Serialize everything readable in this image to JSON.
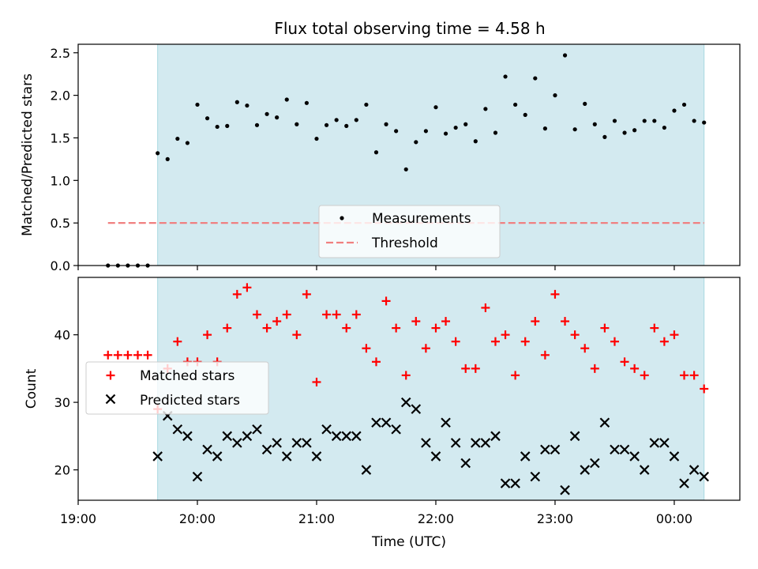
{
  "figure": {
    "title": "Flux total observing time = 4.58 h",
    "x_axis_label": "Time (UTC)"
  },
  "colors": {
    "shade": "#d3eaf0",
    "shade_edge": "#a8d8e0",
    "measurement": "#000000",
    "threshold": "#f08080",
    "matched": "#ff0000",
    "predicted": "#000000"
  },
  "chart_data": [
    {
      "type": "scatter",
      "name": "ratio-panel",
      "ylabel": "Matched/Predicted stars",
      "xlabel": "",
      "x_unit": "hours after 19:00 UTC",
      "xlim": [
        19.0,
        24.55
      ],
      "ylim": [
        0.0,
        2.6
      ],
      "yticks": [
        0.0,
        0.5,
        1.0,
        1.5,
        2.0,
        2.5
      ],
      "ytick_labels": [
        "0.0",
        "0.5",
        "1.0",
        "1.5",
        "2.0",
        "2.5"
      ],
      "grid": false,
      "legend_placement": "bottom-center",
      "shaded_interval": [
        "19:40",
        "00:15"
      ],
      "series": [
        {
          "name": "Measurements",
          "marker": "dot",
          "x": [
            "19:15",
            "19:20",
            "19:25",
            "19:30",
            "19:35",
            "19:40",
            "19:45",
            "19:50",
            "19:55",
            "20:00",
            "20:05",
            "20:10",
            "20:15",
            "20:20",
            "20:25",
            "20:30",
            "20:35",
            "20:40",
            "20:45",
            "20:50",
            "20:55",
            "21:00",
            "21:05",
            "21:10",
            "21:15",
            "21:20",
            "21:25",
            "21:30",
            "21:35",
            "21:40",
            "21:45",
            "21:50",
            "21:55",
            "22:00",
            "22:05",
            "22:10",
            "22:15",
            "22:20",
            "22:25",
            "22:30",
            "22:35",
            "22:40",
            "22:45",
            "22:50",
            "22:55",
            "23:00",
            "23:05",
            "23:10",
            "23:15",
            "23:20",
            "23:25",
            "23:30",
            "23:35",
            "23:40",
            "23:45",
            "23:50",
            "23:55",
            "00:00",
            "00:05",
            "00:10",
            "00:15"
          ],
          "y": [
            0.0,
            0.0,
            0.0,
            0.0,
            0.0,
            1.32,
            1.25,
            1.49,
            1.44,
            1.89,
            1.73,
            1.63,
            1.64,
            1.92,
            1.88,
            1.65,
            1.78,
            1.74,
            1.95,
            1.66,
            1.91,
            1.49,
            1.65,
            1.71,
            1.64,
            1.71,
            1.89,
            1.33,
            1.66,
            1.58,
            1.13,
            1.45,
            1.58,
            1.86,
            1.55,
            1.62,
            1.66,
            1.46,
            1.84,
            1.56,
            2.22,
            1.89,
            1.77,
            2.2,
            1.61,
            2.0,
            2.47,
            1.6,
            1.9,
            1.66,
            1.51,
            1.7,
            1.56,
            1.59,
            1.7,
            1.7,
            1.62,
            1.82,
            1.89,
            1.7,
            1.68
          ]
        },
        {
          "name": "Threshold",
          "type": "line",
          "style": "dashed",
          "x": [
            "19:15",
            "00:15"
          ],
          "y": [
            0.5,
            0.5
          ]
        }
      ]
    },
    {
      "type": "scatter",
      "name": "count-panel",
      "ylabel": "Count",
      "xlabel": "Time (UTC)",
      "x_unit": "hours after 19:00 UTC",
      "xlim": [
        19.0,
        24.55
      ],
      "ylim": [
        15.5,
        48.5
      ],
      "yticks": [
        20,
        30,
        40
      ],
      "ytick_labels": [
        "20",
        "30",
        "40"
      ],
      "xticks": [
        19,
        20,
        21,
        22,
        23,
        24
      ],
      "xtick_labels": [
        "19:00",
        "20:00",
        "21:00",
        "22:00",
        "23:00",
        "00:00"
      ],
      "grid": false,
      "legend_placement": "center-left",
      "shaded_interval": [
        "19:40",
        "00:15"
      ],
      "series": [
        {
          "name": "Matched stars",
          "marker": "plus",
          "x": [
            "19:15",
            "19:20",
            "19:25",
            "19:30",
            "19:35",
            "19:40",
            "19:45",
            "19:50",
            "19:55",
            "20:00",
            "20:05",
            "20:10",
            "20:15",
            "20:20",
            "20:25",
            "20:30",
            "20:35",
            "20:40",
            "20:45",
            "20:50",
            "20:55",
            "21:00",
            "21:05",
            "21:10",
            "21:15",
            "21:20",
            "21:25",
            "21:30",
            "21:35",
            "21:40",
            "21:45",
            "21:50",
            "21:55",
            "22:00",
            "22:05",
            "22:10",
            "22:15",
            "22:20",
            "22:25",
            "22:30",
            "22:35",
            "22:40",
            "22:45",
            "22:50",
            "22:55",
            "23:00",
            "23:05",
            "23:10",
            "23:15",
            "23:20",
            "23:25",
            "23:30",
            "23:35",
            "23:40",
            "23:45",
            "23:50",
            "23:55",
            "00:00",
            "00:05",
            "00:10",
            "00:15"
          ],
          "y": [
            37,
            37,
            37,
            37,
            37,
            29,
            35,
            39,
            36,
            36,
            40,
            36,
            41,
            46,
            47,
            43,
            41,
            42,
            43,
            40,
            46,
            33,
            43,
            43,
            41,
            43,
            38,
            36,
            45,
            41,
            34,
            42,
            38,
            41,
            42,
            39,
            35,
            35,
            44,
            39,
            40,
            34,
            39,
            42,
            37,
            46,
            42,
            40,
            38,
            35,
            41,
            39,
            36,
            35,
            34,
            41,
            39,
            40,
            34,
            34,
            32
          ]
        },
        {
          "name": "Predicted stars",
          "marker": "x",
          "x": [
            "19:40",
            "19:45",
            "19:50",
            "19:55",
            "20:00",
            "20:05",
            "20:10",
            "20:15",
            "20:20",
            "20:25",
            "20:30",
            "20:35",
            "20:40",
            "20:45",
            "20:50",
            "20:55",
            "21:00",
            "21:05",
            "21:10",
            "21:15",
            "21:20",
            "21:25",
            "21:30",
            "21:35",
            "21:40",
            "21:45",
            "21:50",
            "21:55",
            "22:00",
            "22:05",
            "22:10",
            "22:15",
            "22:20",
            "22:25",
            "22:30",
            "22:35",
            "22:40",
            "22:45",
            "22:50",
            "22:55",
            "23:00",
            "23:05",
            "23:10",
            "23:15",
            "23:20",
            "23:25",
            "23:30",
            "23:35",
            "23:40",
            "23:45",
            "23:50",
            "23:55",
            "00:00",
            "00:05",
            "00:10",
            "00:15"
          ],
          "y": [
            22,
            28,
            26,
            25,
            19,
            23,
            22,
            25,
            24,
            25,
            26,
            23,
            24,
            22,
            24,
            24,
            22,
            26,
            25,
            25,
            25,
            20,
            27,
            27,
            26,
            30,
            29,
            24,
            22,
            27,
            24,
            21,
            24,
            24,
            25,
            18,
            18,
            22,
            19,
            23,
            23,
            17,
            25,
            20,
            21,
            27,
            23,
            23,
            22,
            20,
            24,
            24,
            22,
            18,
            20,
            19
          ]
        }
      ]
    }
  ]
}
